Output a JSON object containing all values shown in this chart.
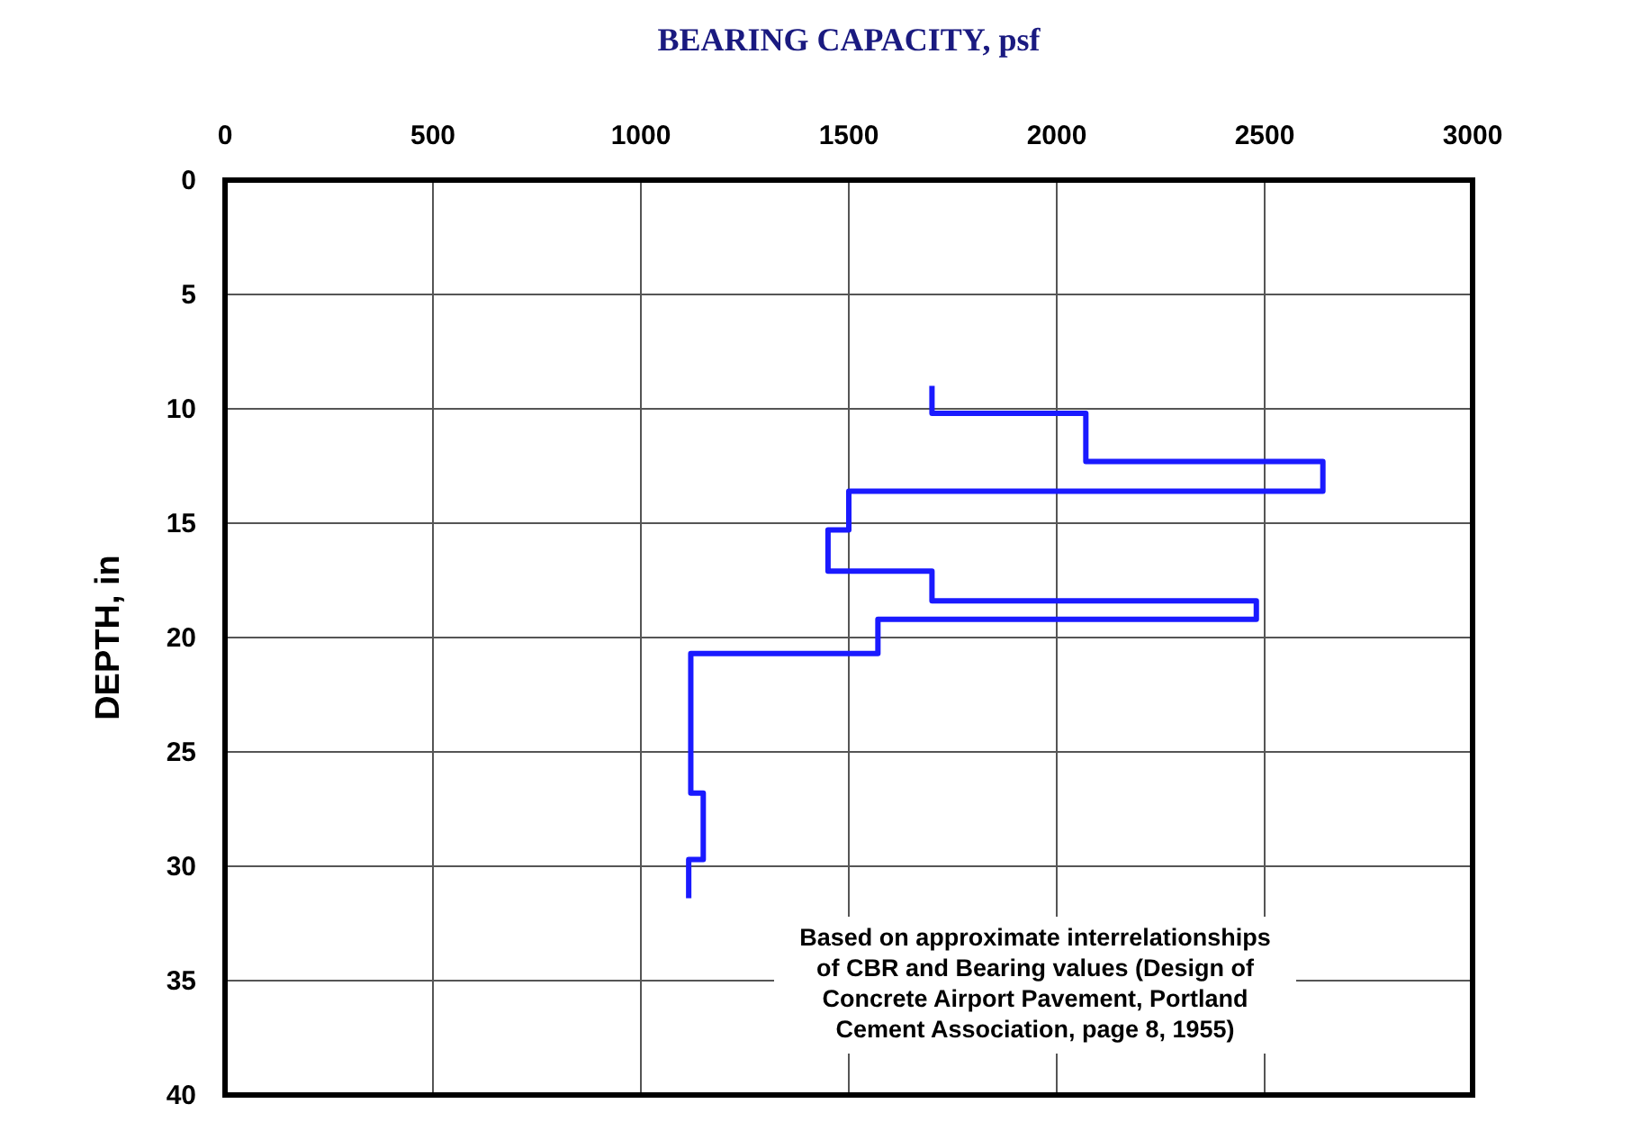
{
  "chart_data": {
    "type": "line",
    "xlabel": "BEARING CAPACITY, psf",
    "ylabel": "DEPTH, in",
    "xlim": [
      0,
      3000
    ],
    "xticks": [
      0,
      500,
      1000,
      1500,
      2000,
      2500,
      3000
    ],
    "ylim": [
      40,
      0
    ],
    "yticks": [
      0,
      5,
      10,
      15,
      20,
      25,
      30,
      35,
      40
    ],
    "grid": true,
    "marker": "none",
    "line_style": "solid",
    "series": [
      {
        "color": "#1a1aff",
        "x": [
          1700,
          1700,
          2070,
          2070,
          2640,
          2640,
          1500,
          1500,
          1450,
          1450,
          1700,
          1700,
          2480,
          2480,
          1570,
          1570,
          1120,
          1120,
          1150,
          1150,
          1115,
          1115
        ],
        "values": [
          9,
          10.2,
          10.2,
          12.3,
          12.3,
          13.6,
          13.6,
          15.3,
          15.3,
          17.1,
          17.1,
          18.4,
          18.4,
          19.2,
          19.2,
          20.7,
          20.7,
          26.8,
          26.8,
          29.7,
          29.7,
          31.4
        ]
      }
    ],
    "annotations": [
      "Based on approximate interrelationships\nof CBR and Bearing values (Design of\nConcrete Airport Pavement, Portland\nCement Association, page 8, 1955)"
    ]
  }
}
